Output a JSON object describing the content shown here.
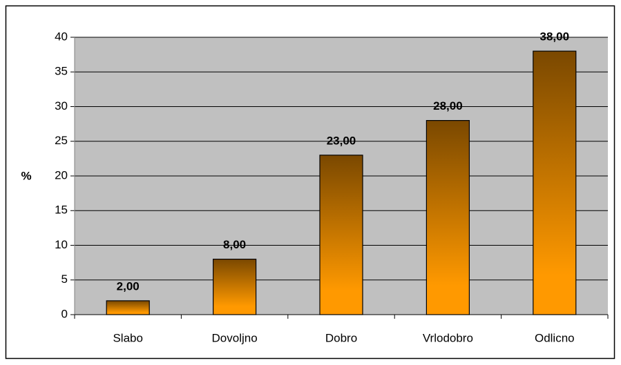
{
  "chart_data": {
    "type": "bar",
    "categories": [
      "Slabo",
      "Dovoljno",
      "Dobro",
      "Vrlodobro",
      "Odlicno"
    ],
    "values": [
      2,
      8,
      23,
      28,
      38
    ],
    "value_labels": [
      "2,00",
      "8,00",
      "23,00",
      "28,00",
      "38,00"
    ],
    "ylabel": "%",
    "ylim": [
      0,
      40
    ],
    "yticks": [
      0,
      5,
      10,
      15,
      20,
      25,
      30,
      35,
      40
    ],
    "grid": true,
    "color": "#ff9900",
    "gradient_top": "#7a4800"
  }
}
